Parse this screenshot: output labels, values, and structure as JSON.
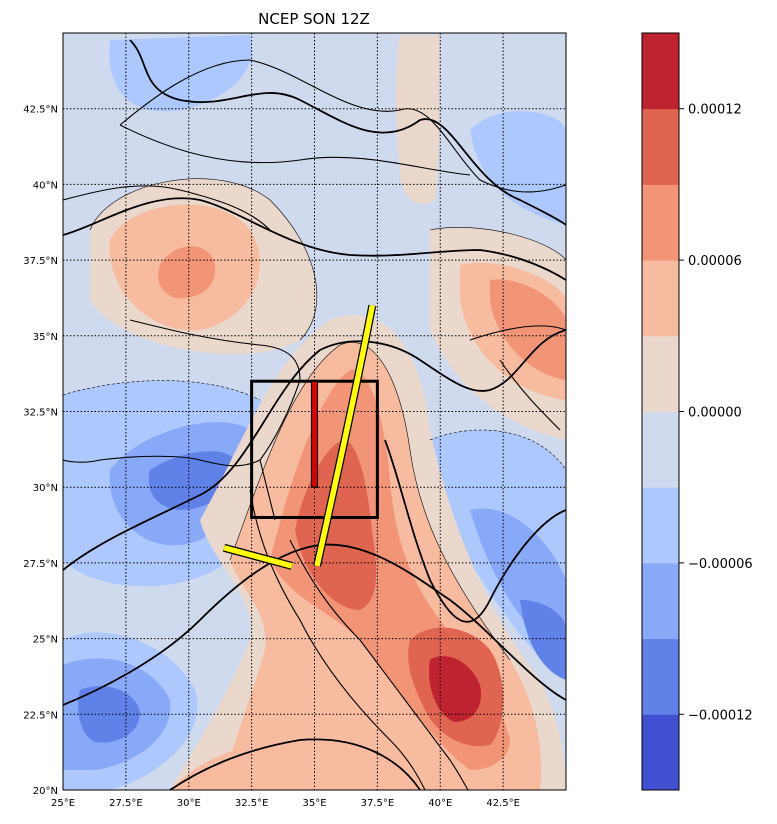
{
  "chart_data": {
    "type": "heatmap",
    "title": "NCEP SON 12Z",
    "extent": {
      "lon": [
        25,
        45
      ],
      "lat": [
        20,
        45
      ]
    },
    "lon_ticks": [
      25,
      27.5,
      30,
      32.5,
      35,
      37.5,
      40,
      42.5
    ],
    "lon_tick_labels": [
      "25°E",
      "27.5°E",
      "30°E",
      "32.5°E",
      "35°E",
      "37.5°E",
      "40°E",
      "42.5°E"
    ],
    "lat_ticks": [
      20,
      22.5,
      25,
      27.5,
      30,
      32.5,
      35,
      37.5,
      40,
      42.5
    ],
    "lat_tick_labels": [
      "20°N",
      "22.5°N",
      "25°N",
      "27.5°N",
      "30°N",
      "32.5°N",
      "35°N",
      "37.5°N",
      "40°N",
      "42.5°N"
    ],
    "grid": true,
    "colorbar": {
      "levels": [
        -0.00015,
        -0.000125,
        -0.0001,
        -7.5e-05,
        -5e-05,
        -2.5e-05,
        0.0,
        2.5e-05,
        5e-05,
        7.5e-05,
        0.0001,
        0.000125,
        0.00015
      ],
      "colors": [
        "#4050d0",
        "#6082e8",
        "#88a8f8",
        "#adc8fd",
        "#d0daee",
        "#ead8cd",
        "#f7bba0",
        "#f29576",
        "#df6550",
        "#c02330"
      ],
      "tick_values": [
        -0.00012,
        -6e-05,
        0.0,
        6e-05,
        0.00012
      ],
      "tick_labels": [
        "−0.00012",
        "−0.00006",
        "0.00000",
        "0.00006",
        "0.00012"
      ]
    },
    "features": [
      {
        "name": "black-box",
        "lon": [
          32.5,
          37.5
        ],
        "lat": [
          29,
          33.5
        ],
        "color": "#000000"
      },
      {
        "name": "red-bar",
        "lon": 35,
        "lat": [
          30,
          33.5
        ],
        "color": "#e00000"
      },
      {
        "name": "yellow-arc",
        "points": [
          [
            37.3,
            36
          ],
          [
            36.6,
            33
          ],
          [
            35.8,
            30
          ],
          [
            35.1,
            27.4
          ]
        ],
        "color": "#ffff00"
      },
      {
        "name": "yellow-bar",
        "points": [
          [
            31.4,
            28
          ],
          [
            34.1,
            27.4
          ]
        ],
        "color": "#ffff00"
      }
    ]
  }
}
